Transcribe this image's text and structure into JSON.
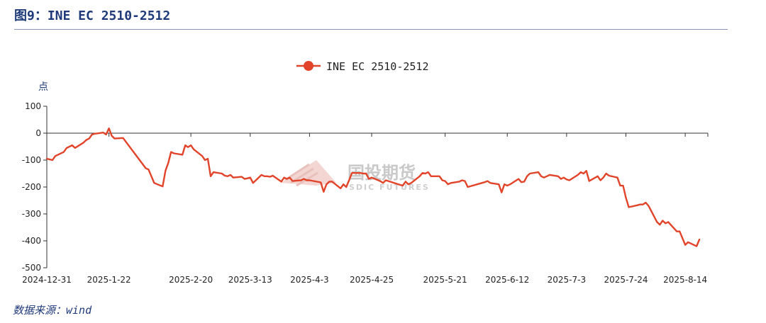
{
  "figure": {
    "title": "图9：INE EC 2510-2512",
    "source": "数据来源：wind"
  },
  "watermark": {
    "text": "国投期货",
    "sub": "SDIC FUTURES"
  },
  "colors": {
    "line": "#e2442a",
    "title": "#1f3a7a"
  },
  "chart_data": {
    "type": "line",
    "unit_label": "点",
    "legend": {
      "position": "top-center"
    },
    "grid": false,
    "ylim": [
      -500,
      100
    ],
    "yticks": [
      100,
      0,
      -100,
      -200,
      -300,
      -400,
      -500
    ],
    "xlim": [
      "2024-12-31",
      "2025-08-22"
    ],
    "xticks": [
      "2024-12-31",
      "2025-1-22",
      "2025-2-20",
      "2025-3-13",
      "2025-4-3",
      "2025-4-25",
      "2025-5-21",
      "2025-6-12",
      "2025-7-3",
      "2025-7-24",
      "2025-8-14"
    ],
    "series": [
      {
        "name": "INE EC 2510-2512",
        "points": [
          [
            "2024-12-31",
            -95
          ],
          [
            "2025-01-02",
            -100
          ],
          [
            "2025-01-03",
            -85
          ],
          [
            "2025-01-06",
            -70
          ],
          [
            "2025-01-07",
            -55
          ],
          [
            "2025-01-08",
            -50
          ],
          [
            "2025-01-09",
            -45
          ],
          [
            "2025-01-10",
            -55
          ],
          [
            "2025-01-13",
            -35
          ],
          [
            "2025-01-14",
            -25
          ],
          [
            "2025-01-15",
            -20
          ],
          [
            "2025-01-16",
            -5
          ],
          [
            "2025-01-17",
            -2
          ],
          [
            "2025-01-20",
            2
          ],
          [
            "2025-01-21",
            -5
          ],
          [
            "2025-01-22",
            18
          ],
          [
            "2025-01-23",
            -10
          ],
          [
            "2025-01-24",
            -20
          ],
          [
            "2025-01-27",
            -18
          ],
          [
            "2025-02-04",
            -130
          ],
          [
            "2025-02-05",
            -135
          ],
          [
            "2025-02-06",
            -160
          ],
          [
            "2025-02-07",
            -185
          ],
          [
            "2025-02-10",
            -198
          ],
          [
            "2025-02-11",
            -140
          ],
          [
            "2025-02-12",
            -110
          ],
          [
            "2025-02-13",
            -70
          ],
          [
            "2025-02-14",
            -75
          ],
          [
            "2025-02-17",
            -80
          ],
          [
            "2025-02-18",
            -45
          ],
          [
            "2025-02-19",
            -52
          ],
          [
            "2025-02-20",
            -45
          ],
          [
            "2025-02-21",
            -60
          ],
          [
            "2025-02-24",
            -85
          ],
          [
            "2025-02-25",
            -100
          ],
          [
            "2025-02-26",
            -95
          ],
          [
            "2025-02-27",
            -160
          ],
          [
            "2025-02-28",
            -145
          ],
          [
            "2025-03-03",
            -150
          ],
          [
            "2025-03-04",
            -158
          ],
          [
            "2025-03-05",
            -160
          ],
          [
            "2025-03-06",
            -155
          ],
          [
            "2025-03-07",
            -165
          ],
          [
            "2025-03-10",
            -162
          ],
          [
            "2025-03-11",
            -170
          ],
          [
            "2025-03-12",
            -168
          ],
          [
            "2025-03-13",
            -165
          ],
          [
            "2025-03-14",
            -185
          ],
          [
            "2025-03-17",
            -155
          ],
          [
            "2025-03-18",
            -160
          ],
          [
            "2025-03-19",
            -160
          ],
          [
            "2025-03-20",
            -162
          ],
          [
            "2025-03-21",
            -158
          ],
          [
            "2025-03-24",
            -180
          ],
          [
            "2025-03-25",
            -165
          ],
          [
            "2025-03-26",
            -170
          ],
          [
            "2025-03-27",
            -165
          ],
          [
            "2025-03-28",
            -178
          ],
          [
            "2025-03-31",
            -175
          ],
          [
            "2025-04-01",
            -170
          ],
          [
            "2025-04-02",
            -175
          ],
          [
            "2025-04-03",
            -175
          ],
          [
            "2025-04-07",
            -183
          ],
          [
            "2025-04-08",
            -218
          ],
          [
            "2025-04-09",
            -190
          ],
          [
            "2025-04-10",
            -180
          ],
          [
            "2025-04-11",
            -180
          ],
          [
            "2025-04-14",
            -205
          ],
          [
            "2025-04-15",
            -190
          ],
          [
            "2025-04-16",
            -200
          ],
          [
            "2025-04-17",
            -175
          ],
          [
            "2025-04-18",
            -148
          ],
          [
            "2025-04-21",
            -148
          ],
          [
            "2025-04-22",
            -150
          ],
          [
            "2025-04-23",
            -150
          ],
          [
            "2025-04-24",
            -170
          ],
          [
            "2025-04-25",
            -165
          ],
          [
            "2025-04-28",
            -178
          ],
          [
            "2025-04-29",
            -185
          ],
          [
            "2025-04-30",
            -175
          ],
          [
            "2025-05-06",
            -195
          ],
          [
            "2025-05-07",
            -180
          ],
          [
            "2025-05-08",
            -190
          ],
          [
            "2025-05-09",
            -185
          ],
          [
            "2025-05-12",
            -160
          ],
          [
            "2025-05-13",
            -148
          ],
          [
            "2025-05-14",
            -150
          ],
          [
            "2025-05-15",
            -145
          ],
          [
            "2025-05-16",
            -160
          ],
          [
            "2025-05-19",
            -160
          ],
          [
            "2025-05-20",
            -175
          ],
          [
            "2025-05-21",
            -178
          ],
          [
            "2025-05-22",
            -190
          ],
          [
            "2025-05-23",
            -185
          ],
          [
            "2025-05-26",
            -180
          ],
          [
            "2025-05-27",
            -175
          ],
          [
            "2025-05-28",
            -178
          ],
          [
            "2025-05-29",
            -200
          ],
          [
            "2025-06-03",
            -185
          ],
          [
            "2025-06-04",
            -182
          ],
          [
            "2025-06-05",
            -178
          ],
          [
            "2025-06-06",
            -185
          ],
          [
            "2025-06-09",
            -190
          ],
          [
            "2025-06-10",
            -220
          ],
          [
            "2025-06-11",
            -190
          ],
          [
            "2025-06-12",
            -195
          ],
          [
            "2025-06-13",
            -190
          ],
          [
            "2025-06-16",
            -170
          ],
          [
            "2025-06-17",
            -182
          ],
          [
            "2025-06-18",
            -180
          ],
          [
            "2025-06-19",
            -160
          ],
          [
            "2025-06-20",
            -150
          ],
          [
            "2025-06-23",
            -145
          ],
          [
            "2025-06-24",
            -160
          ],
          [
            "2025-06-25",
            -165
          ],
          [
            "2025-06-26",
            -160
          ],
          [
            "2025-06-27",
            -155
          ],
          [
            "2025-06-30",
            -160
          ],
          [
            "2025-07-01",
            -170
          ],
          [
            "2025-07-02",
            -165
          ],
          [
            "2025-07-03",
            -172
          ],
          [
            "2025-07-04",
            -175
          ],
          [
            "2025-07-07",
            -155
          ],
          [
            "2025-07-08",
            -145
          ],
          [
            "2025-07-09",
            -150
          ],
          [
            "2025-07-10",
            -140
          ],
          [
            "2025-07-11",
            -178
          ],
          [
            "2025-07-14",
            -160
          ],
          [
            "2025-07-15",
            -175
          ],
          [
            "2025-07-16",
            -165
          ],
          [
            "2025-07-17",
            -150
          ],
          [
            "2025-07-18",
            -158
          ],
          [
            "2025-07-21",
            -165
          ],
          [
            "2025-07-22",
            -195
          ],
          [
            "2025-07-23",
            -195
          ],
          [
            "2025-07-24",
            -240
          ],
          [
            "2025-07-25",
            -275
          ],
          [
            "2025-07-28",
            -268
          ],
          [
            "2025-07-29",
            -265
          ],
          [
            "2025-07-30",
            -265
          ],
          [
            "2025-07-31",
            -258
          ],
          [
            "2025-08-01",
            -270
          ],
          [
            "2025-08-04",
            -330
          ],
          [
            "2025-08-05",
            -340
          ],
          [
            "2025-08-06",
            -325
          ],
          [
            "2025-08-07",
            -335
          ],
          [
            "2025-08-08",
            -330
          ],
          [
            "2025-08-11",
            -365
          ],
          [
            "2025-08-12",
            -365
          ],
          [
            "2025-08-13",
            -390
          ],
          [
            "2025-08-14",
            -415
          ],
          [
            "2025-08-15",
            -405
          ],
          [
            "2025-08-18",
            -420
          ],
          [
            "2025-08-19",
            -395
          ]
        ]
      }
    ]
  }
}
